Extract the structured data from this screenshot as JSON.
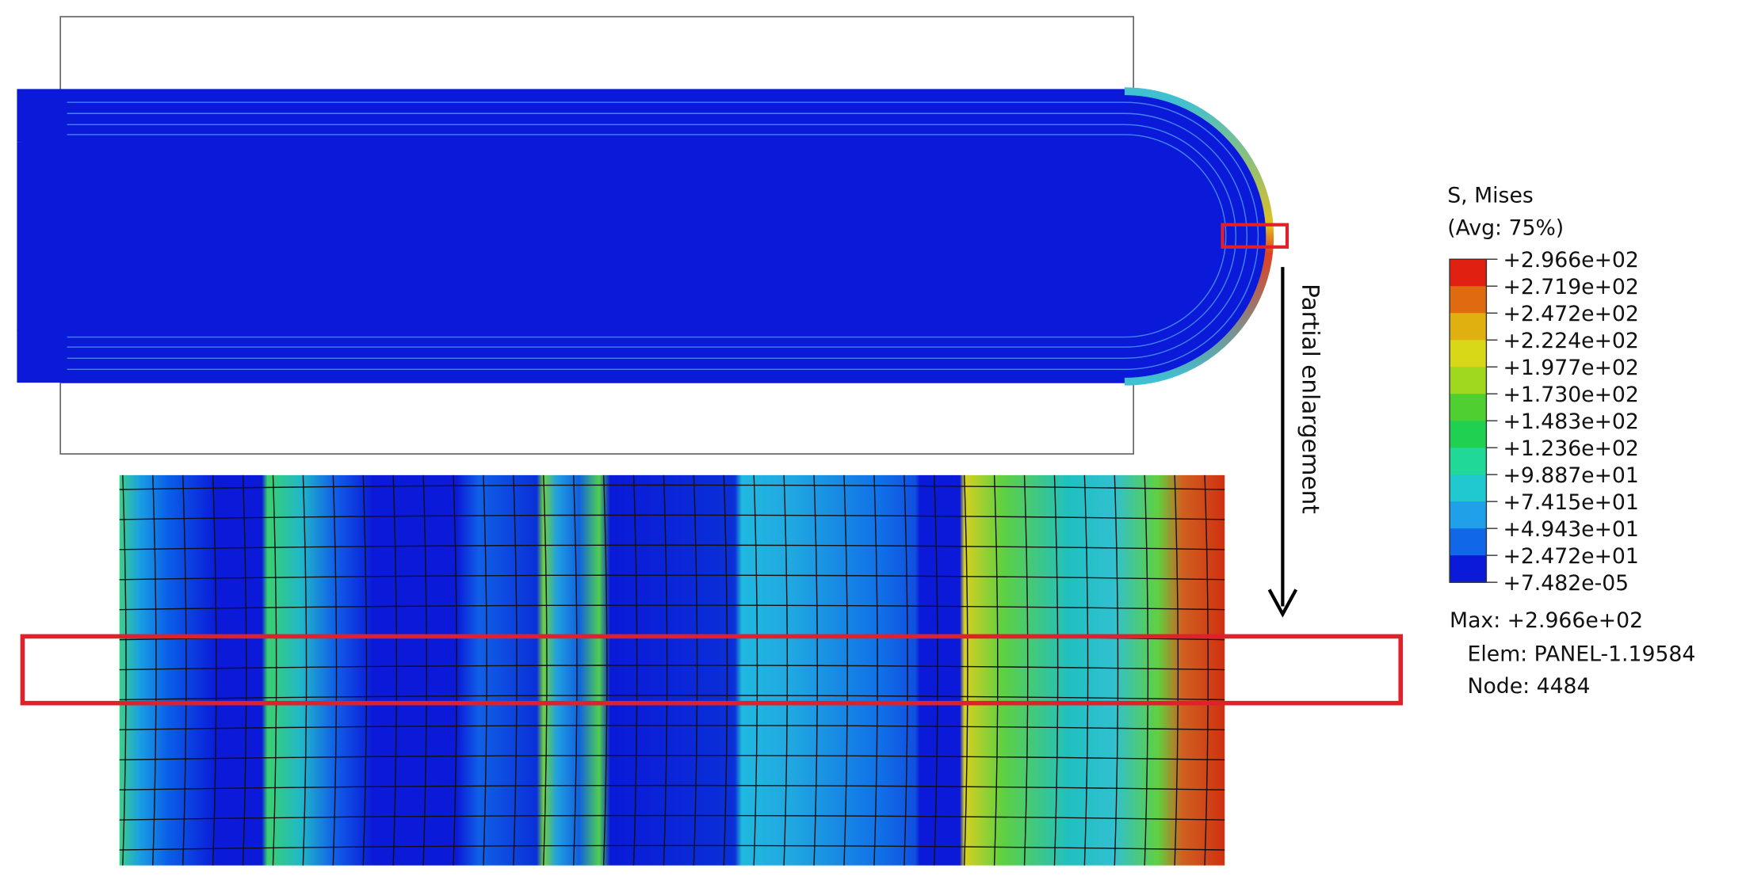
{
  "legend": {
    "title": "S, Mises",
    "subtitle": "(Avg: 75%)",
    "labels": [
      "+2.966e+02",
      "+2.719e+02",
      "+2.472e+02",
      "+2.224e+02",
      "+1.977e+02",
      "+1.730e+02",
      "+1.483e+02",
      "+1.236e+02",
      "+9.887e+01",
      "+7.415e+01",
      "+4.943e+01",
      "+2.472e+01",
      "+7.482e-05"
    ],
    "max": "Max: +2.966e+02",
    "elem": "Elem: PANEL-1.19584",
    "node": "Node: 4484"
  },
  "annotation": "Partial enlargement"
}
